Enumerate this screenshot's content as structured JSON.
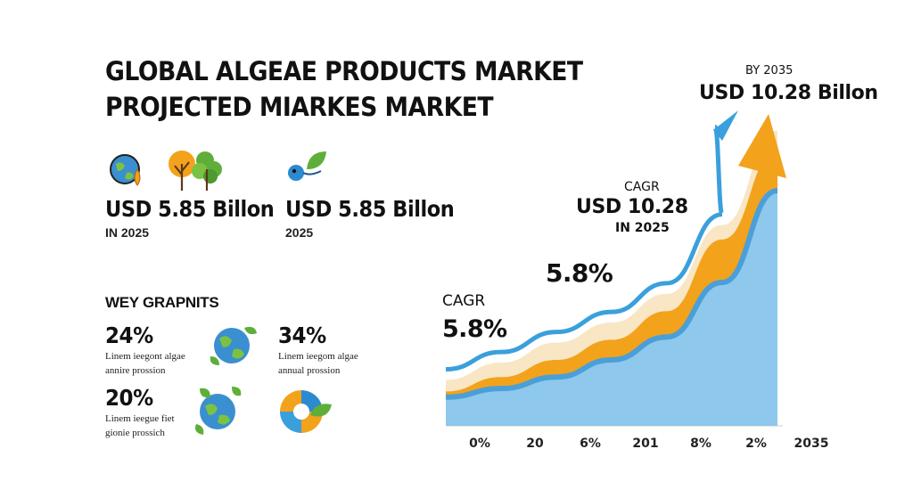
{
  "title": {
    "line1": "GLOBAL ALGEAE PRODUCTS MARKET",
    "line2": "PROJECTED MIARKES MARKET"
  },
  "stats": [
    {
      "value": "USD 5.85 Billon",
      "sub": "IN 2025"
    },
    {
      "value": "USD 5.85 Billon",
      "sub": "2025"
    }
  ],
  "key_points": {
    "heading": "WEY GRAPNITS",
    "items": [
      {
        "pct": "24%",
        "line1": "Linem ieegont algae",
        "line2": "annire prossion"
      },
      {
        "pct": "34%",
        "line1": "Linem ieegom algae",
        "line2": "annual prossion"
      },
      {
        "pct": "20%",
        "line1": "Linem ieegue fiet",
        "line2": "gionie prossich"
      }
    ]
  },
  "annotations": {
    "by_label": "BY 2035",
    "by_value": "USD 10.28 Billon",
    "cagr_top": "CAGR",
    "cagr_top_value": "USD 10.28",
    "cagr_top_year": "IN 2025",
    "mid_pct": "5.8%",
    "cagr_left": "CAGR",
    "cagr_left_value": "5.8%"
  },
  "chart_data": {
    "type": "area",
    "categories": [
      "0%",
      "20",
      "6%",
      "201",
      "8%",
      "2%",
      "2035"
    ],
    "series": [
      {
        "values": [
          1.0,
          1.3,
          1.7,
          2.3,
          3.1,
          5.0,
          8.2
        ]
      },
      {
        "values": [
          1.2,
          1.7,
          2.3,
          3.0,
          4.0,
          6.5,
          9.6
        ]
      },
      {
        "values": [
          1.6,
          2.2,
          2.9,
          3.6,
          4.6,
          7.0,
          10.3
        ]
      }
    ],
    "colors": {
      "area": "#8ec8ec",
      "area_edge": "#4a9fd8",
      "orange": "#f3a21c",
      "cream": "#f8e6c4",
      "blue_arrow": "#3aa0dc"
    },
    "grid": false
  }
}
